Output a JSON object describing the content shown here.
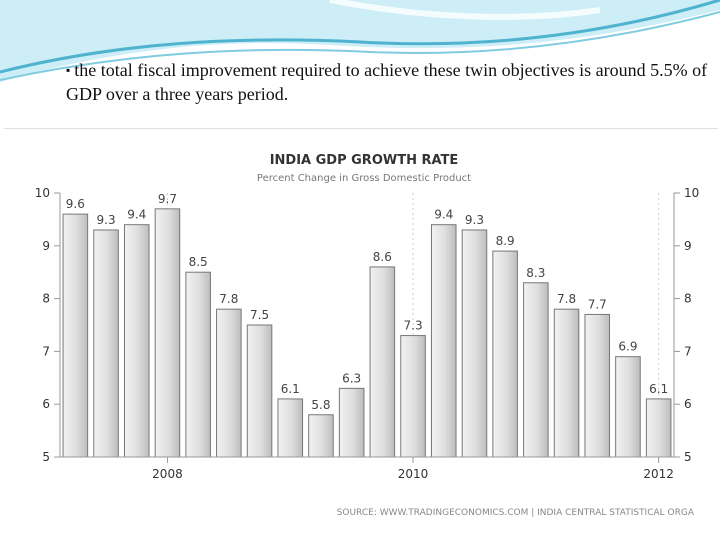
{
  "slide": {
    "bullet_text": "the total fiscal improvement required to achieve these twin objectives is around 5.5% of GDP over a three years period.",
    "bullet_glyph": "▪"
  },
  "colors": {
    "swoosh_light": "#b9e3f0",
    "swoosh_dark": "#4fb3d0",
    "bar_fill": "#dedede",
    "bar_edge": "#777777",
    "axis": "#999999"
  },
  "chart_data": {
    "type": "bar",
    "title": "INDIA GDP GROWTH RATE",
    "subtitle": "Percent Change in Gross Domestic Product",
    "source": "SOURCE: WWW.TRADINGECONOMICS.COM | INDIA CENTRAL STATISTICAL ORGA",
    "values": [
      9.6,
      9.3,
      9.4,
      9.7,
      8.5,
      7.8,
      7.5,
      6.1,
      5.8,
      6.3,
      8.6,
      7.3,
      9.4,
      9.3,
      8.9,
      8.3,
      7.8,
      7.7,
      6.9,
      6.1
    ],
    "value_labels": [
      "9.6",
      "9.3",
      "9.4",
      "9.7",
      "8.5",
      "7.8",
      "7.5",
      "6.1",
      "5.8",
      "6.3",
      "8.6",
      "7.3",
      "9.4",
      "9.3",
      "8.9",
      "8.3",
      "7.8",
      "7.7",
      "6.9",
      "6.1"
    ],
    "x_ticks": [
      {
        "label": "2008",
        "index": 3.5
      },
      {
        "label": "2010",
        "index": 11.5
      },
      {
        "label": "2012",
        "index": 19.5
      }
    ],
    "y_ticks": [
      5,
      6,
      7,
      8,
      9,
      10
    ],
    "ylim": [
      5,
      10
    ],
    "xlabel": "",
    "ylabel": ""
  }
}
